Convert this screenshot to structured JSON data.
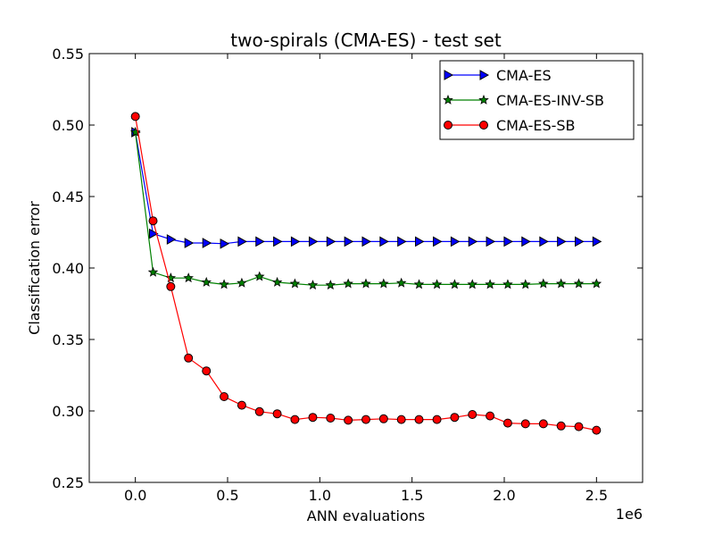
{
  "chart_data": {
    "type": "line",
    "title": "two-spirals (CMA-ES) - test set",
    "xlabel": "ANN evaluations",
    "ylabel": "Classification error",
    "x_offset_label": "1e6",
    "xlim": [
      -0.25,
      2.75
    ],
    "ylim": [
      0.25,
      0.55
    ],
    "x_ticks": [
      0.0,
      0.5,
      1.0,
      1.5,
      2.0,
      2.5
    ],
    "x_tick_labels": [
      "0.0",
      "0.5",
      "1.0",
      "1.5",
      "2.0",
      "2.5"
    ],
    "y_ticks": [
      0.25,
      0.3,
      0.35,
      0.4,
      0.45,
      0.5,
      0.55
    ],
    "y_tick_labels": [
      "0.25",
      "0.30",
      "0.35",
      "0.40",
      "0.45",
      "0.50",
      "0.55"
    ],
    "grid": false,
    "legend_position": "top-right",
    "x": [
      0.0,
      0.096,
      0.192,
      0.288,
      0.385,
      0.481,
      0.577,
      0.673,
      0.769,
      0.865,
      0.962,
      1.058,
      1.154,
      1.25,
      1.346,
      1.442,
      1.538,
      1.635,
      1.731,
      1.827,
      1.923,
      2.019,
      2.115,
      2.212,
      2.308,
      2.404,
      2.5
    ],
    "series": [
      {
        "name": "CMA-ES",
        "color": "#0000ff",
        "marker": "triangle-right",
        "values": [
          0.495,
          0.424,
          0.42,
          0.4175,
          0.4175,
          0.417,
          0.4185,
          0.4185,
          0.4185,
          0.4185,
          0.4185,
          0.4185,
          0.4185,
          0.4185,
          0.4185,
          0.4185,
          0.4185,
          0.4185,
          0.4185,
          0.4185,
          0.4185,
          0.4185,
          0.4185,
          0.4185,
          0.4185,
          0.4185,
          0.4185
        ]
      },
      {
        "name": "CMA-ES-INV-SB",
        "color": "#008000",
        "marker": "star",
        "values": [
          0.495,
          0.397,
          0.393,
          0.393,
          0.39,
          0.3885,
          0.3895,
          0.394,
          0.39,
          0.389,
          0.388,
          0.388,
          0.389,
          0.389,
          0.389,
          0.3895,
          0.3885,
          0.3885,
          0.3885,
          0.3885,
          0.3885,
          0.3885,
          0.3885,
          0.389,
          0.389,
          0.389,
          0.389
        ]
      },
      {
        "name": "CMA-ES-SB",
        "color": "#ff0000",
        "marker": "circle",
        "values": [
          0.506,
          0.433,
          0.387,
          0.337,
          0.328,
          0.31,
          0.304,
          0.2995,
          0.298,
          0.294,
          0.2955,
          0.295,
          0.2935,
          0.294,
          0.2945,
          0.294,
          0.294,
          0.294,
          0.2955,
          0.2975,
          0.2965,
          0.2915,
          0.291,
          0.291,
          0.2895,
          0.289,
          0.2865
        ]
      }
    ]
  }
}
